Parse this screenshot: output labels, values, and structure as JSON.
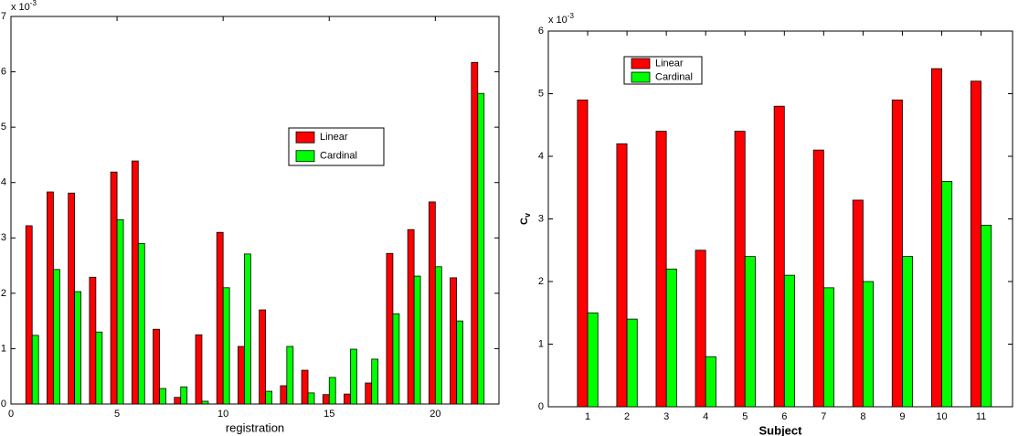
{
  "chart_data": [
    {
      "type": "bar",
      "xlabel": "registration",
      "y_multiplier": {
        "base": "x 10",
        "exponent": "-3"
      },
      "x": [
        1,
        2,
        3,
        4,
        5,
        6,
        7,
        8,
        9,
        10,
        11,
        12,
        13,
        14,
        15,
        16,
        17,
        18,
        19,
        20,
        21,
        22
      ],
      "series": [
        {
          "name": "Linear",
          "color": "#ff0000",
          "values": [
            3.22,
            3.83,
            3.81,
            2.29,
            4.19,
            4.39,
            1.35,
            0.12,
            1.25,
            3.1,
            1.04,
            1.7,
            0.33,
            0.61,
            0.17,
            0.18,
            0.38,
            2.72,
            3.15,
            3.65,
            2.28,
            6.17
          ]
        },
        {
          "name": "Cardinal",
          "color": "#00ff00",
          "values": [
            1.24,
            2.43,
            2.03,
            1.3,
            3.33,
            2.9,
            0.28,
            0.31,
            0.05,
            2.1,
            2.71,
            0.23,
            1.04,
            0.2,
            0.48,
            0.99,
            0.81,
            1.63,
            2.31,
            2.48,
            1.5,
            5.61
          ]
        }
      ],
      "xlim": [
        0,
        23
      ],
      "xticks": [
        0,
        5,
        10,
        15,
        20
      ],
      "ylim": [
        0,
        7
      ],
      "yticks": [
        0,
        1,
        2,
        3,
        4,
        5,
        6,
        7
      ]
    },
    {
      "type": "bar",
      "xlabel": "Subject",
      "ylabel": "C",
      "ylabel_subscript": "v",
      "y_multiplier": {
        "base": "x 10",
        "exponent": "-3"
      },
      "categories": [
        "1",
        "2",
        "3",
        "4",
        "5",
        "6",
        "7",
        "8",
        "9",
        "10",
        "11"
      ],
      "series": [
        {
          "name": "Linear",
          "color": "#ff0000",
          "values": [
            4.9,
            4.2,
            4.4,
            2.5,
            4.4,
            4.8,
            4.1,
            3.3,
            4.9,
            5.4,
            5.2
          ]
        },
        {
          "name": "Cardinal",
          "color": "#00ff00",
          "values": [
            1.5,
            1.4,
            2.2,
            0.8,
            2.4,
            2.1,
            1.9,
            2.0,
            2.4,
            3.6,
            2.9
          ]
        }
      ],
      "ylim": [
        0,
        6
      ],
      "yticks": [
        0,
        1,
        2,
        3,
        4,
        5,
        6
      ]
    }
  ]
}
